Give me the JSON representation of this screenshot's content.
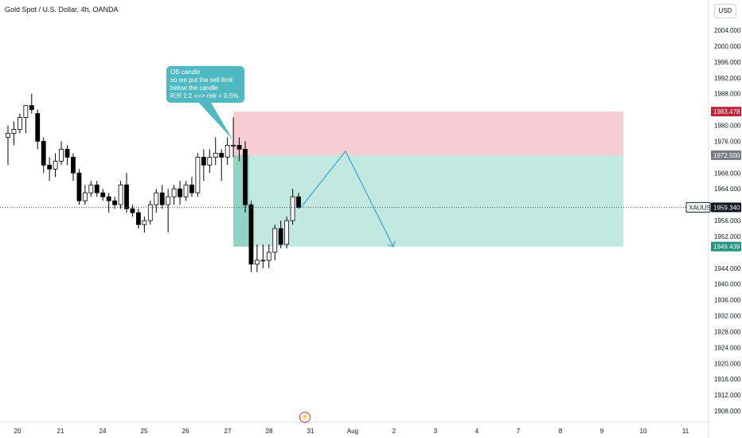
{
  "header": {
    "title": "Gold Spot / U.S. Dollar, 4h, OANDA",
    "currency": "USD"
  },
  "annotation": {
    "lines": [
      "OB candle",
      "so we put the sell limit",
      "below the candle",
      "R:R  1:2 ==> risk = 0.5%"
    ]
  },
  "colors": {
    "up_candle": "#ffffff",
    "down_candle": "#000000",
    "stop_zone": "#f7cdd3",
    "target_zone": "#c2e9e0",
    "arrow": "#3fa9e0",
    "callout": "#4fb9c2",
    "stop_label": "#c4213a",
    "entry_label": "#787b86",
    "target_label": "#1e9480"
  },
  "chart_data": {
    "type": "candlestick",
    "ylim": [
      1904,
      2010
    ],
    "y_ticks": [
      "2004.000",
      "2000.000",
      "1996.000",
      "1992.000",
      "1988.000",
      "1980.000",
      "1976.000",
      "1968.000",
      "1964.000",
      "1956.000",
      "1952.000",
      "1944.000",
      "1940.000",
      "1936.000",
      "1932.000",
      "1928.000",
      "1924.000",
      "1920.000",
      "1916.000",
      "1912.000",
      "1908.000"
    ],
    "x_ticks": [
      "20",
      "21",
      "24",
      "25",
      "26",
      "27",
      "28",
      "31",
      "Aug",
      "2",
      "3",
      "4",
      "7",
      "8",
      "9",
      "10",
      "11"
    ],
    "price_labels": [
      {
        "text": "1983.478",
        "value": 1983.478,
        "role": "stop"
      },
      {
        "text": "1972.500",
        "value": 1972.5,
        "role": "entry"
      },
      {
        "text": "XAUUSD",
        "value": 1959.34,
        "role": "symbol"
      },
      {
        "text": "1959.340",
        "value": 1959.34,
        "role": "last"
      },
      {
        "text": "1949.439",
        "value": 1949.439,
        "role": "target"
      }
    ],
    "position": {
      "type": "short",
      "entry": 1972.5,
      "stop": 1983.478,
      "target": 1949.439
    },
    "projection": [
      [
        1959.34,
        1973.5,
        1949.439
      ]
    ],
    "candles": [
      [
        1977,
        1980,
        1970,
        1978
      ],
      [
        1978,
        1981,
        1975,
        1979
      ],
      [
        1979,
        1983,
        1978,
        1982
      ],
      [
        1982,
        1985,
        1978,
        1985
      ],
      [
        1985,
        1988,
        1983,
        1984
      ],
      [
        1983,
        1984,
        1974,
        1976
      ],
      [
        1976,
        1977,
        1968,
        1970
      ],
      [
        1970,
        1972,
        1966,
        1969
      ],
      [
        1969,
        1973,
        1967,
        1971
      ],
      [
        1971,
        1976,
        1970,
        1974
      ],
      [
        1974,
        1975,
        1970,
        1972
      ],
      [
        1972,
        1973,
        1966,
        1968
      ],
      [
        1968,
        1969,
        1960,
        1961
      ],
      [
        1961,
        1965,
        1960,
        1963
      ],
      [
        1963,
        1966,
        1962,
        1965
      ],
      [
        1965,
        1966,
        1962,
        1963
      ],
      [
        1963,
        1964,
        1961,
        1962
      ],
      [
        1962,
        1963,
        1958,
        1961
      ],
      [
        1961,
        1962,
        1959,
        1960
      ],
      [
        1960,
        1966,
        1959,
        1965
      ],
      [
        1965,
        1968,
        1958,
        1959
      ],
      [
        1959,
        1960,
        1957,
        1958
      ],
      [
        1958,
        1959,
        1954,
        1955
      ],
      [
        1955,
        1957,
        1953,
        1956
      ],
      [
        1956,
        1961,
        1955,
        1960
      ],
      [
        1960,
        1964,
        1958,
        1963
      ],
      [
        1963,
        1965,
        1959,
        1960
      ],
      [
        1960,
        1964,
        1953,
        1962
      ],
      [
        1962,
        1965,
        1960,
        1964
      ],
      [
        1964,
        1966,
        1960,
        1962
      ],
      [
        1962,
        1966,
        1961,
        1965
      ],
      [
        1965,
        1967,
        1962,
        1963
      ],
      [
        1963,
        1973,
        1962,
        1972
      ],
      [
        1972,
        1974,
        1966,
        1970
      ],
      [
        1970,
        1974,
        1968,
        1972
      ],
      [
        1972,
        1977,
        1970,
        1973
      ],
      [
        1973,
        1974,
        1966,
        1972
      ],
      [
        1972,
        1977,
        1970,
        1975
      ],
      [
        1975,
        1982,
        1972,
        1975
      ],
      [
        1975,
        1977,
        1971,
        1974
      ],
      [
        1974,
        1976,
        1958,
        1960
      ],
      [
        1960,
        1961,
        1943,
        1945
      ],
      [
        1945,
        1950,
        1943,
        1946
      ],
      [
        1946,
        1950,
        1944,
        1946
      ],
      [
        1946,
        1950,
        1944,
        1948
      ],
      [
        1948,
        1955,
        1946,
        1954
      ],
      [
        1954,
        1956,
        1949,
        1950
      ],
      [
        1950,
        1957,
        1949,
        1956
      ],
      [
        1956,
        1964,
        1955,
        1962
      ],
      [
        1962,
        1963,
        1959,
        1959.34
      ]
    ]
  }
}
